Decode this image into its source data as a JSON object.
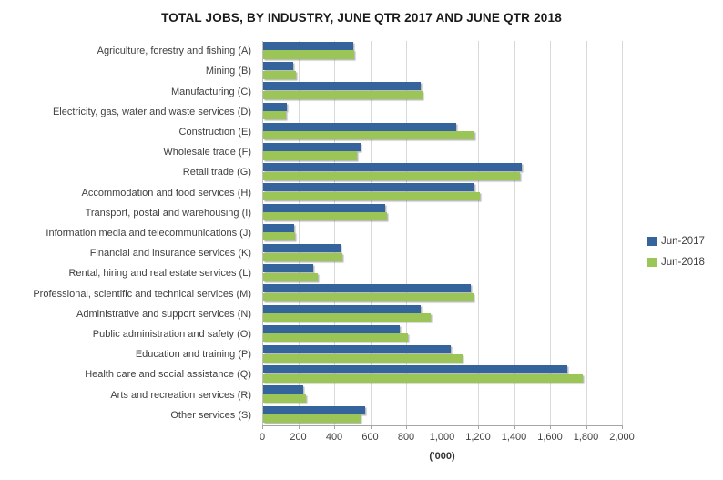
{
  "title": "TOTAL JOBS, BY INDUSTRY, JUNE QTR 2017 AND JUNE QTR 2018",
  "colors": {
    "jun2017": "#35639B",
    "jun2018": "#9CC558",
    "gridline": "#d9d9d9",
    "axis_line": "#bfbfbf",
    "text": "#404040"
  },
  "legend": [
    {
      "label": "Jun-2017",
      "color": "#35639B"
    },
    {
      "label": "Jun-2018",
      "color": "#9CC558"
    }
  ],
  "chart_data": {
    "type": "bar",
    "orientation": "horizontal",
    "title": "TOTAL JOBS, BY INDUSTRY, JUNE QTR 2017 AND JUNE QTR 2018",
    "xlabel": "('000)",
    "xlim": [
      0,
      2000
    ],
    "xticks": [
      "0",
      "200",
      "400",
      "600",
      "800",
      "1,000",
      "1,200",
      "1,400",
      "1,600",
      "1,800",
      "2,000"
    ],
    "grid": true,
    "legend_position": "right",
    "categories": [
      "Agriculture, forestry and fishing (A)",
      "Mining (B)",
      "Manufacturing (C)",
      "Electricity, gas, water and waste services (D)",
      "Construction (E)",
      "Wholesale trade (F)",
      "Retail trade (G)",
      "Accommodation and food services (H)",
      "Transport, postal and warehousing (I)",
      "Information media and telecommunications (J)",
      "Financial and insurance services (K)",
      "Rental, hiring and real estate services (L)",
      "Professional, scientific and technical services (M)",
      "Administrative and support services (N)",
      "Public administration and safety (O)",
      "Education and training (P)",
      "Health care and social assistance (Q)",
      "Arts and recreation services (R)",
      "Other services (S)"
    ],
    "series": [
      {
        "name": "Jun-2017",
        "values": [
          500,
          165,
          875,
          130,
          1075,
          540,
          1440,
          1175,
          680,
          170,
          430,
          280,
          1155,
          875,
          760,
          1045,
          1690,
          225,
          565
        ]
      },
      {
        "name": "Jun-2018",
        "values": [
          505,
          180,
          885,
          128,
          1175,
          520,
          1430,
          1205,
          690,
          175,
          440,
          305,
          1170,
          930,
          805,
          1110,
          1775,
          240,
          540
        ]
      }
    ]
  }
}
